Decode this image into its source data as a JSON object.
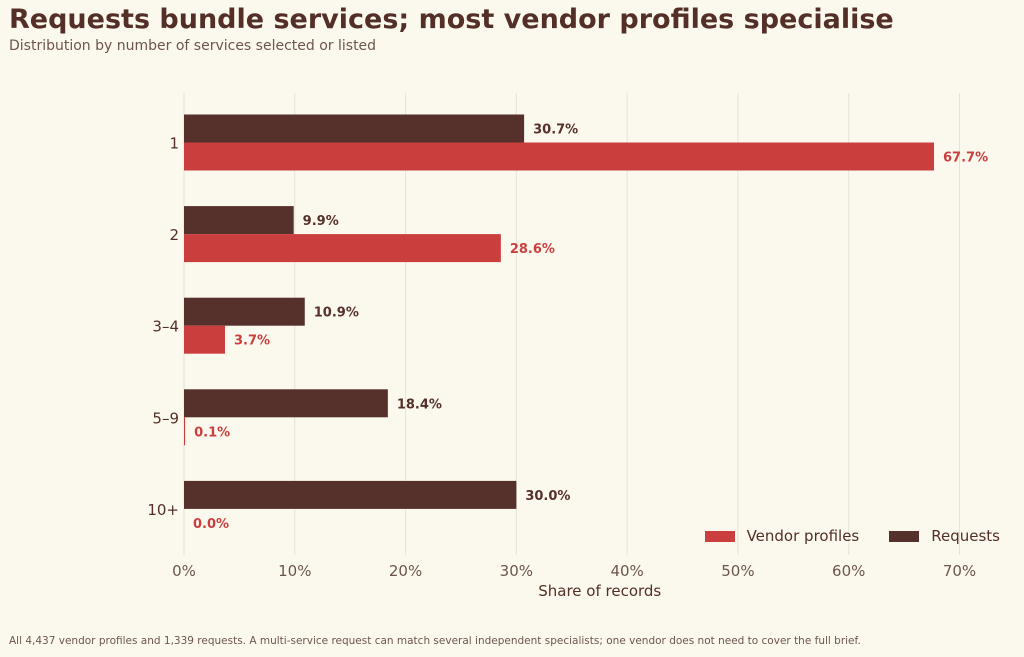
{
  "title": "Requests bundle services; most vendor profiles specialise",
  "subtitle": "Distribution by number of services selected or listed",
  "footnote": "All 4,437 vendor profiles and 1,339 requests. A multi-service request can match several independent specialists; one vendor does not need to cover the full brief.",
  "colors": {
    "vendor": "#cb3e3e",
    "requests": "#56302a",
    "grid": "#e6e3d6",
    "text": "#532f27",
    "tick": "#6d554e"
  },
  "legend": [
    {
      "label": "Vendor profiles",
      "color": "#cb3e3e"
    },
    {
      "label": "Requests",
      "color": "#56302a"
    }
  ],
  "chart_data": {
    "type": "bar",
    "orientation": "horizontal",
    "categories": [
      "1",
      "2",
      "3–4",
      "5–9",
      "10+"
    ],
    "series": [
      {
        "name": "Requests",
        "values": [
          30.7,
          9.9,
          10.9,
          18.4,
          30.0
        ],
        "labels": [
          "30.7%",
          "9.9%",
          "10.9%",
          "18.4%",
          "30.0%"
        ]
      },
      {
        "name": "Vendor profiles",
        "values": [
          67.7,
          28.6,
          3.7,
          0.1,
          0.0
        ],
        "labels": [
          "67.7%",
          "28.6%",
          "3.7%",
          "0.1%",
          "0.0%"
        ]
      }
    ],
    "xlabel": "Share of records",
    "ylabel": "",
    "xlim": [
      0,
      70
    ],
    "xticks": [
      "0%",
      "10%",
      "20%",
      "30%",
      "40%",
      "50%",
      "60%",
      "70%"
    ],
    "grid": true,
    "legend_position": "bottom-right"
  }
}
